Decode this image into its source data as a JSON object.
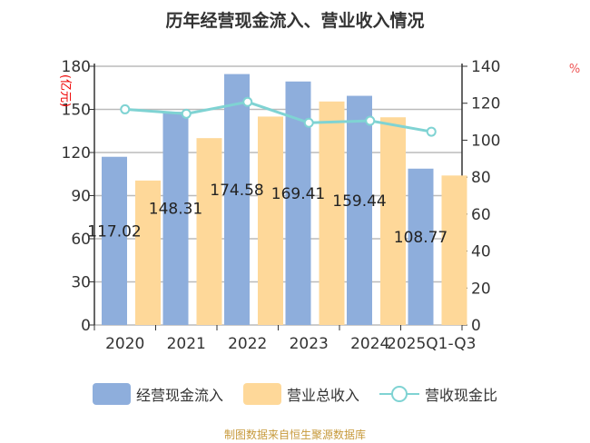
{
  "chart_data": {
    "type": "bar",
    "title": "历年经营现金流入、营业收入情况",
    "categories": [
      "2020",
      "2021",
      "2022",
      "2023",
      "2024",
      "2025Q1-Q3"
    ],
    "y_left": {
      "label": "(亿元)",
      "ticks": [
        0,
        30,
        60,
        90,
        120,
        150,
        180
      ],
      "range": [
        0,
        180
      ]
    },
    "y_right": {
      "label": "%",
      "ticks": [
        0,
        20,
        40,
        60,
        80,
        100,
        120,
        140
      ],
      "range": [
        0,
        140
      ]
    },
    "grid": true,
    "legend_placement": "bottom",
    "series": [
      {
        "name": "经营现金流入",
        "type": "bar",
        "axis": "left",
        "color": "#8eaedc",
        "values": [
          117.02,
          148.31,
          174.58,
          169.41,
          159.44,
          108.77
        ],
        "labels": [
          "117.02",
          "148.31",
          "174.58",
          "169.41",
          "159.44",
          "108.77"
        ]
      },
      {
        "name": "营业总收入",
        "type": "bar",
        "axis": "left",
        "color": "#fed899",
        "values": [
          100.5,
          130.0,
          145.0,
          155.5,
          144.5,
          104.0
        ]
      },
      {
        "name": "营收现金比",
        "type": "line",
        "axis": "right",
        "color": "#7fd3d3",
        "values": [
          116.7,
          114.3,
          120.7,
          109.4,
          110.5,
          104.6
        ]
      }
    ]
  },
  "footer": {
    "source": "制图数据来自恒生聚源数据库"
  }
}
